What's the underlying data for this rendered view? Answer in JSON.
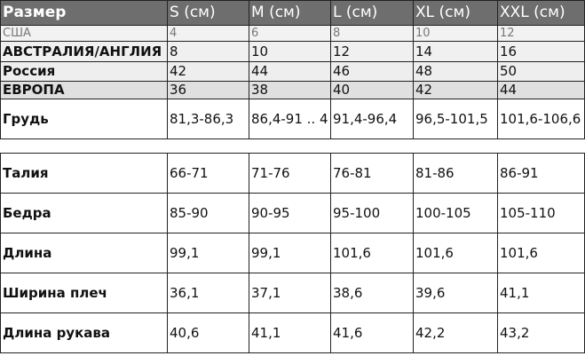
{
  "table1": {
    "header": [
      "Размер",
      "S (см)",
      "M (см)",
      "L (см)",
      "XL (см)",
      "XXL (см)"
    ],
    "rows": [
      [
        "США",
        "4",
        "6",
        "8",
        "10",
        "12"
      ],
      [
        "АВСТРАЛИЯ/АНГЛИЯ",
        "8",
        "10",
        "12",
        "14",
        "16"
      ],
      [
        "Россия",
        "42",
        "44",
        "46",
        "48",
        "50"
      ],
      [
        "ЕВРОПА",
        "36",
        "38",
        "40",
        "42",
        "44"
      ],
      [
        "Грудь",
        "81,3-86,3",
        "86,4-91 .. 4",
        "91,4-96,4",
        "96,5-101,5",
        "101,6-106,6"
      ]
    ]
  },
  "table2": {
    "rows": [
      [
        "Талия",
        "66-71",
        "71-76",
        "76-81",
        "81-86",
        "86-91"
      ],
      [
        "Бедра",
        "85-90",
        "90-95",
        "95-100",
        "100-105",
        "105-110"
      ],
      [
        "Длина",
        "99,1",
        "99,1",
        "101,6",
        "101,6",
        "101,6"
      ],
      [
        "Ширина плеч",
        "36,1",
        "37,1",
        "38,6",
        "39,6",
        "41,1"
      ],
      [
        "Длина рукава",
        "40,6",
        "41,1",
        "41,6",
        "42,2",
        "43,2"
      ]
    ]
  }
}
